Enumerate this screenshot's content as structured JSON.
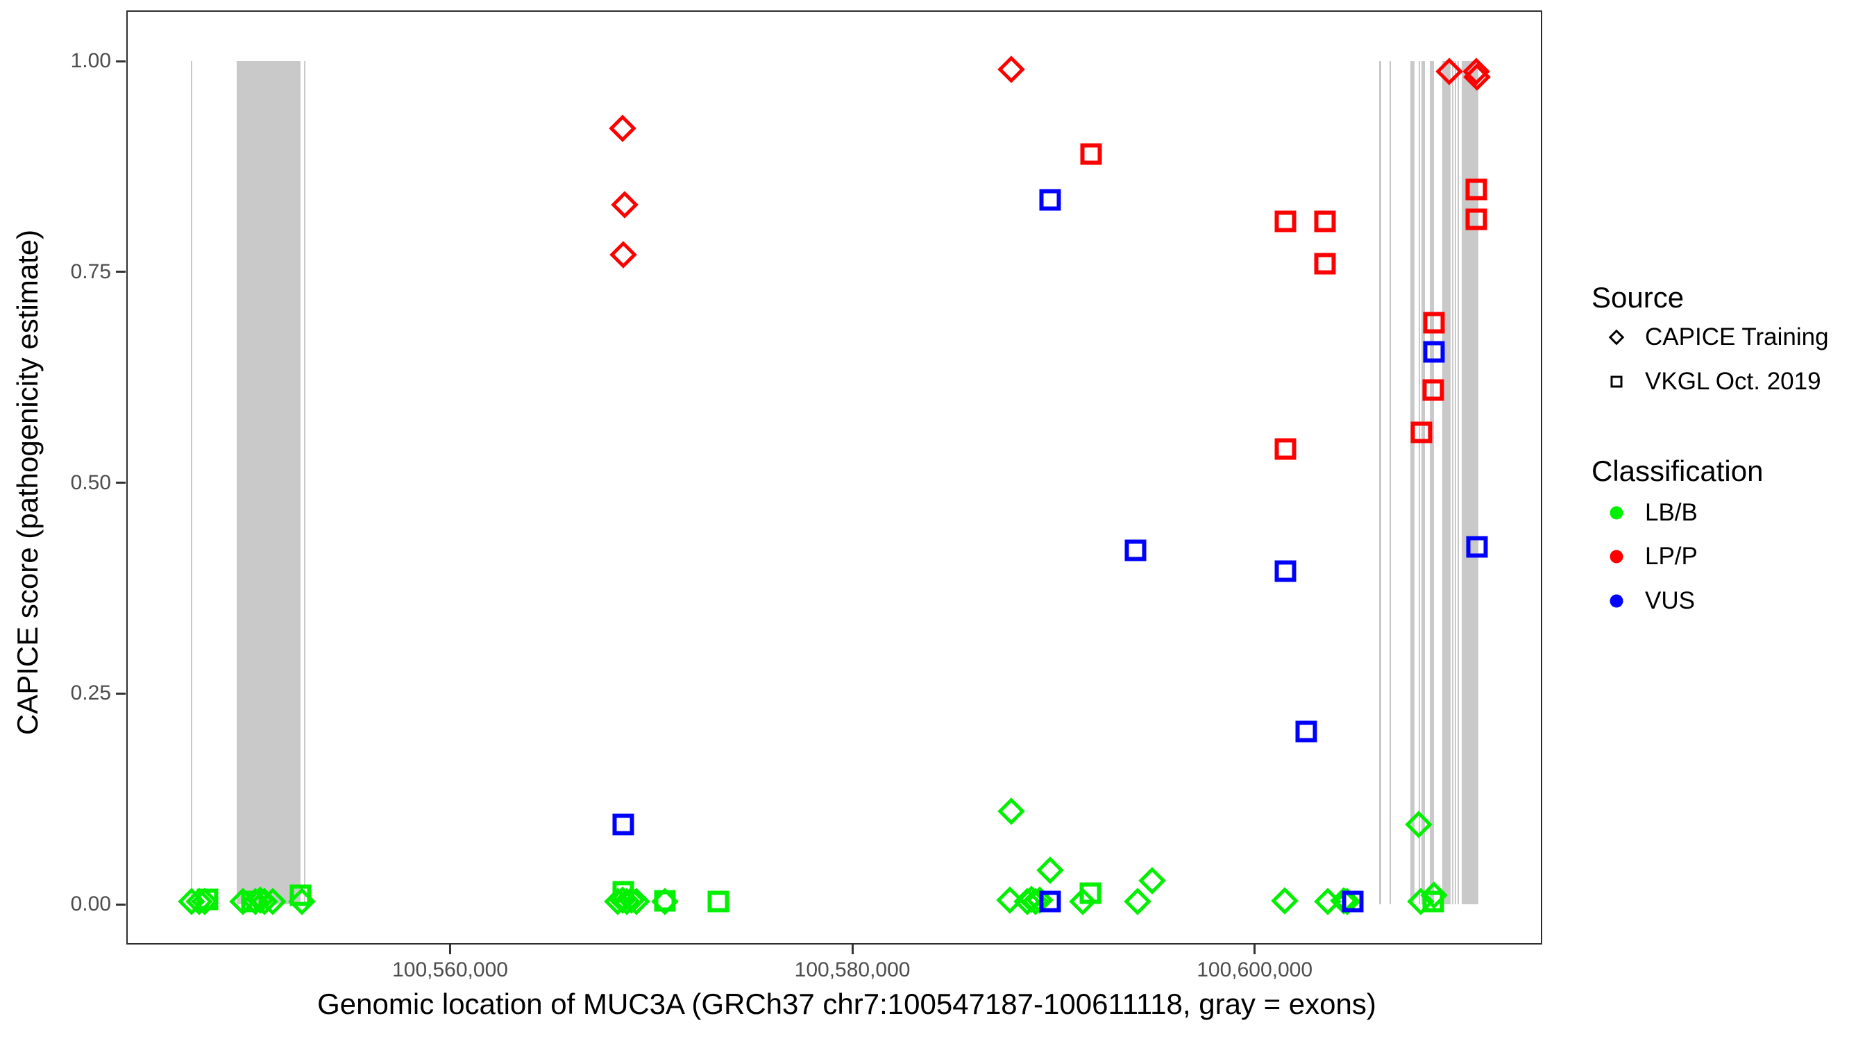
{
  "chart_data": {
    "type": "scatter",
    "xlabel": "Genomic location of MUC3A (GRCh37 chr7:100547187-100611118, gray = exons)",
    "ylabel": "CAPICE score (pathogenicity estimate)",
    "x_range_bp": [
      100543900,
      100614300
    ],
    "y_range": [
      0,
      1
    ],
    "grid": "off",
    "exon_color": "#c9c9c9",
    "x_ticks": [
      {
        "value": 100560000,
        "label": "100,560,000"
      },
      {
        "value": 100580000,
        "label": "100,580,000"
      },
      {
        "value": 100600000,
        "label": "100,600,000"
      }
    ],
    "y_ticks": [
      {
        "value": 0.0,
        "label": "0.00"
      },
      {
        "value": 0.25,
        "label": "0.25"
      },
      {
        "value": 0.5,
        "label": "0.50"
      },
      {
        "value": 0.75,
        "label": "0.75"
      },
      {
        "value": 1.0,
        "label": "1.00"
      }
    ],
    "exons_bp": [
      [
        100547100,
        100547180
      ],
      [
        100549390,
        100552560
      ],
      [
        100552740,
        100552815
      ],
      [
        100606190,
        100606290
      ],
      [
        100606710,
        100606790
      ],
      [
        100607740,
        100607950
      ],
      [
        100608160,
        100608235
      ],
      [
        100608290,
        100608470
      ],
      [
        100608710,
        100608920
      ],
      [
        100609330,
        100609740
      ],
      [
        100609810,
        100609885
      ],
      [
        100609950,
        100610025
      ],
      [
        100610090,
        100610165
      ],
      [
        100610290,
        100611120
      ]
    ],
    "series": [
      {
        "name": "CAPICE Training / LB/B",
        "source": "CAPICE Training",
        "classification": "LB/B",
        "marker": "diamond",
        "color": "#00f000",
        "points": [
          {
            "x": 100547145,
            "y": 0.003
          },
          {
            "x": 100547525,
            "y": 0.003
          },
          {
            "x": 100547800,
            "y": 0.003
          },
          {
            "x": 100549700,
            "y": 0.003
          },
          {
            "x": 100550320,
            "y": 0.003
          },
          {
            "x": 100550560,
            "y": 0.005
          },
          {
            "x": 100550770,
            "y": 0.003
          },
          {
            "x": 100551180,
            "y": 0.003
          },
          {
            "x": 100552630,
            "y": 0.003
          },
          {
            "x": 100568330,
            "y": 0.003
          },
          {
            "x": 100568575,
            "y": 0.005
          },
          {
            "x": 100568780,
            "y": 0.003
          },
          {
            "x": 100569020,
            "y": 0.005
          },
          {
            "x": 100569265,
            "y": 0.003
          },
          {
            "x": 100570680,
            "y": 0.003
          },
          {
            "x": 100587830,
            "y": 0.005
          },
          {
            "x": 100587900,
            "y": 0.11
          },
          {
            "x": 100588695,
            "y": 0.003
          },
          {
            "x": 100588900,
            "y": 0.006
          },
          {
            "x": 100589110,
            "y": 0.003
          },
          {
            "x": 100589315,
            "y": 0.005
          },
          {
            "x": 100589830,
            "y": 0.04
          },
          {
            "x": 100591455,
            "y": 0.003
          },
          {
            "x": 100594180,
            "y": 0.003
          },
          {
            "x": 100594905,
            "y": 0.028
          },
          {
            "x": 100601495,
            "y": 0.004
          },
          {
            "x": 100603635,
            "y": 0.003
          },
          {
            "x": 100604430,
            "y": 0.004
          },
          {
            "x": 100604600,
            "y": 0.003
          },
          {
            "x": 100608155,
            "y": 0.095
          },
          {
            "x": 100608260,
            "y": 0.003
          },
          {
            "x": 100608915,
            "y": 0.011
          }
        ]
      },
      {
        "name": "CAPICE Training / LP/P",
        "source": "CAPICE Training",
        "classification": "LP/P",
        "marker": "diamond",
        "color": "#ff0000",
        "points": [
          {
            "x": 100568575,
            "y": 0.92
          },
          {
            "x": 100568680,
            "y": 0.83
          },
          {
            "x": 100568610,
            "y": 0.77
          },
          {
            "x": 100587900,
            "y": 0.99
          },
          {
            "x": 100609675,
            "y": 0.988
          },
          {
            "x": 100611020,
            "y": 0.988
          },
          {
            "x": 100611055,
            "y": 0.981
          }
        ]
      },
      {
        "name": "VKGL Oct. 2019 / LB/B",
        "source": "VKGL Oct. 2019",
        "classification": "LB/B",
        "marker": "square",
        "color": "#00f000",
        "points": [
          {
            "x": 100547940,
            "y": 0.006
          },
          {
            "x": 100550145,
            "y": 0.003
          },
          {
            "x": 100552560,
            "y": 0.011
          },
          {
            "x": 100568610,
            "y": 0.015
          },
          {
            "x": 100570680,
            "y": 0.004
          },
          {
            "x": 100573340,
            "y": 0.003
          },
          {
            "x": 100591835,
            "y": 0.013
          },
          {
            "x": 100608880,
            "y": 0.003
          }
        ]
      },
      {
        "name": "VKGL Oct. 2019 / LP/P",
        "source": "VKGL Oct. 2019",
        "classification": "LP/P",
        "marker": "square",
        "color": "#ff0000",
        "points": [
          {
            "x": 100591870,
            "y": 0.89
          },
          {
            "x": 100601530,
            "y": 0.81
          },
          {
            "x": 100603495,
            "y": 0.81
          },
          {
            "x": 100603495,
            "y": 0.76
          },
          {
            "x": 100601530,
            "y": 0.54
          },
          {
            "x": 100608295,
            "y": 0.56
          },
          {
            "x": 100608915,
            "y": 0.69
          },
          {
            "x": 100608880,
            "y": 0.61
          },
          {
            "x": 100611020,
            "y": 0.848
          },
          {
            "x": 100611020,
            "y": 0.812
          }
        ]
      },
      {
        "name": "VKGL Oct. 2019 / VUS",
        "source": "VKGL Oct. 2019",
        "classification": "VUS",
        "marker": "square",
        "color": "#0000ff",
        "points": [
          {
            "x": 100568610,
            "y": 0.095
          },
          {
            "x": 100589830,
            "y": 0.835
          },
          {
            "x": 100589830,
            "y": 0.003
          },
          {
            "x": 100594075,
            "y": 0.42
          },
          {
            "x": 100601530,
            "y": 0.395
          },
          {
            "x": 100602565,
            "y": 0.205
          },
          {
            "x": 100604875,
            "y": 0.003
          },
          {
            "x": 100608915,
            "y": 0.655
          },
          {
            "x": 100611055,
            "y": 0.424
          }
        ]
      }
    ]
  },
  "legend": {
    "source": {
      "title": "Source",
      "items": [
        {
          "label": "CAPICE Training",
          "marker": "diamond"
        },
        {
          "label": "VKGL Oct. 2019",
          "marker": "square"
        }
      ]
    },
    "classification": {
      "title": "Classification",
      "items": [
        {
          "label": "LB/B",
          "color": "#00f000"
        },
        {
          "label": "LP/P",
          "color": "#ff0000"
        },
        {
          "label": "VUS",
          "color": "#0000ff"
        }
      ]
    }
  }
}
